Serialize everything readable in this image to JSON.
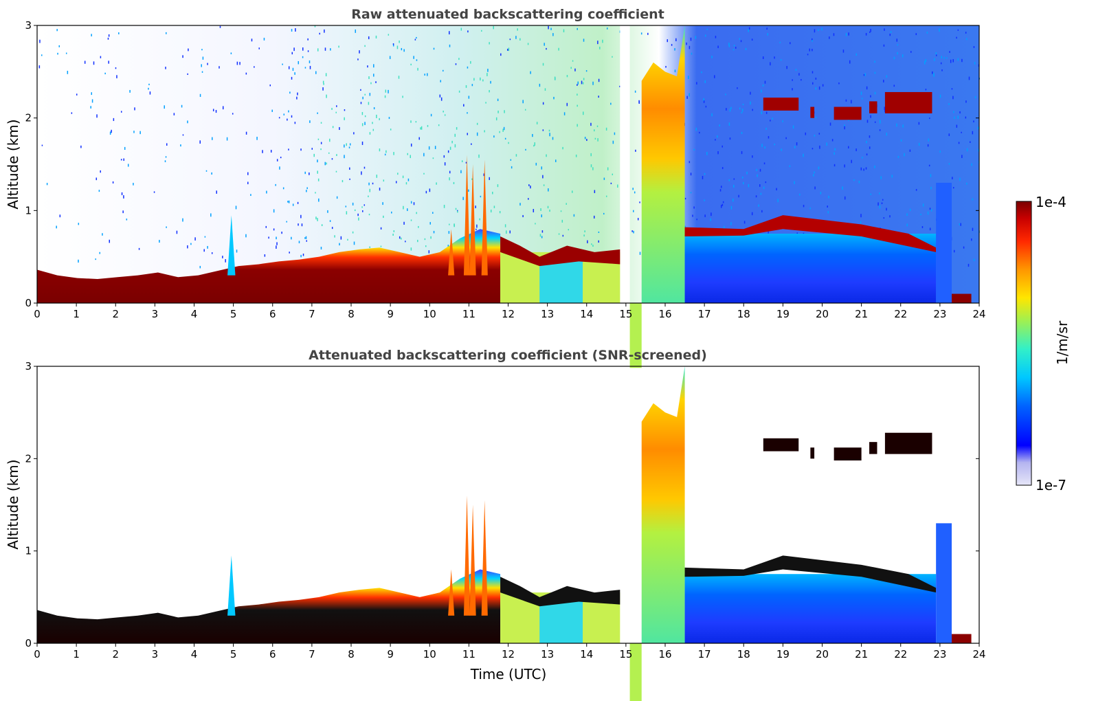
{
  "chart_data": [
    {
      "type": "heatmap",
      "title": "Raw attenuated backscattering coefficient",
      "xlabel": "",
      "ylabel": "Altitude (km)",
      "xlim": [
        0,
        24
      ],
      "ylim": [
        0,
        3
      ],
      "xticks": [
        "0",
        "1",
        "2",
        "3",
        "4",
        "5",
        "6",
        "7",
        "8",
        "9",
        "10",
        "11",
        "12",
        "13",
        "14",
        "15",
        "16",
        "17",
        "18",
        "19",
        "20",
        "21",
        "22",
        "23",
        "24"
      ],
      "yticks": [
        "0",
        "1",
        "2",
        "3"
      ],
      "colorscale": "jet",
      "features": [
        {
          "name": "boundary layer",
          "x": [
            0,
            11.8
          ],
          "top_km": [
            0.35,
            0.3,
            0.28,
            0.3,
            0.4,
            0.3,
            0.35,
            0.45,
            0.5,
            0.6,
            0.8
          ]
        },
        {
          "name": "cloud layer",
          "x": [
            11.8,
            14.9
          ],
          "altitude_km": 0.5
        },
        {
          "name": "fog/precipitation column",
          "x": [
            15.4,
            16.5
          ],
          "top_km": 3.0
        },
        {
          "name": "low cloud",
          "x": [
            16.5,
            22.9
          ],
          "altitude_km": 0.75
        },
        {
          "name": "mid-level cloud",
          "x": [
            18.5,
            23.0
          ],
          "altitude_km": 2.1
        }
      ]
    },
    {
      "type": "heatmap",
      "title": "Attenuated backscattering coefficient (SNR-screened)",
      "xlabel": "Time (UTC)",
      "ylabel": "Altitude (km)",
      "xlim": [
        0,
        24
      ],
      "ylim": [
        0,
        3
      ],
      "xticks": [
        "0",
        "1",
        "2",
        "3",
        "4",
        "5",
        "6",
        "7",
        "8",
        "9",
        "10",
        "11",
        "12",
        "13",
        "14",
        "15",
        "16",
        "17",
        "18",
        "19",
        "20",
        "21",
        "22",
        "23",
        "24"
      ],
      "yticks": [
        "0",
        "1",
        "2",
        "3"
      ],
      "colorscale": "jet"
    }
  ],
  "colorbar": {
    "label": "1/m/sr",
    "max_label": "1e-4",
    "min_label": "1e-7",
    "colors": [
      "#dcdcf5",
      "#b4b4f0",
      "#0000ff",
      "#0064ff",
      "#00b4ff",
      "#00e6e6",
      "#32f096",
      "#b4f032",
      "#ffe600",
      "#ffa000",
      "#ff3c00",
      "#dc0000",
      "#8b0000"
    ]
  }
}
